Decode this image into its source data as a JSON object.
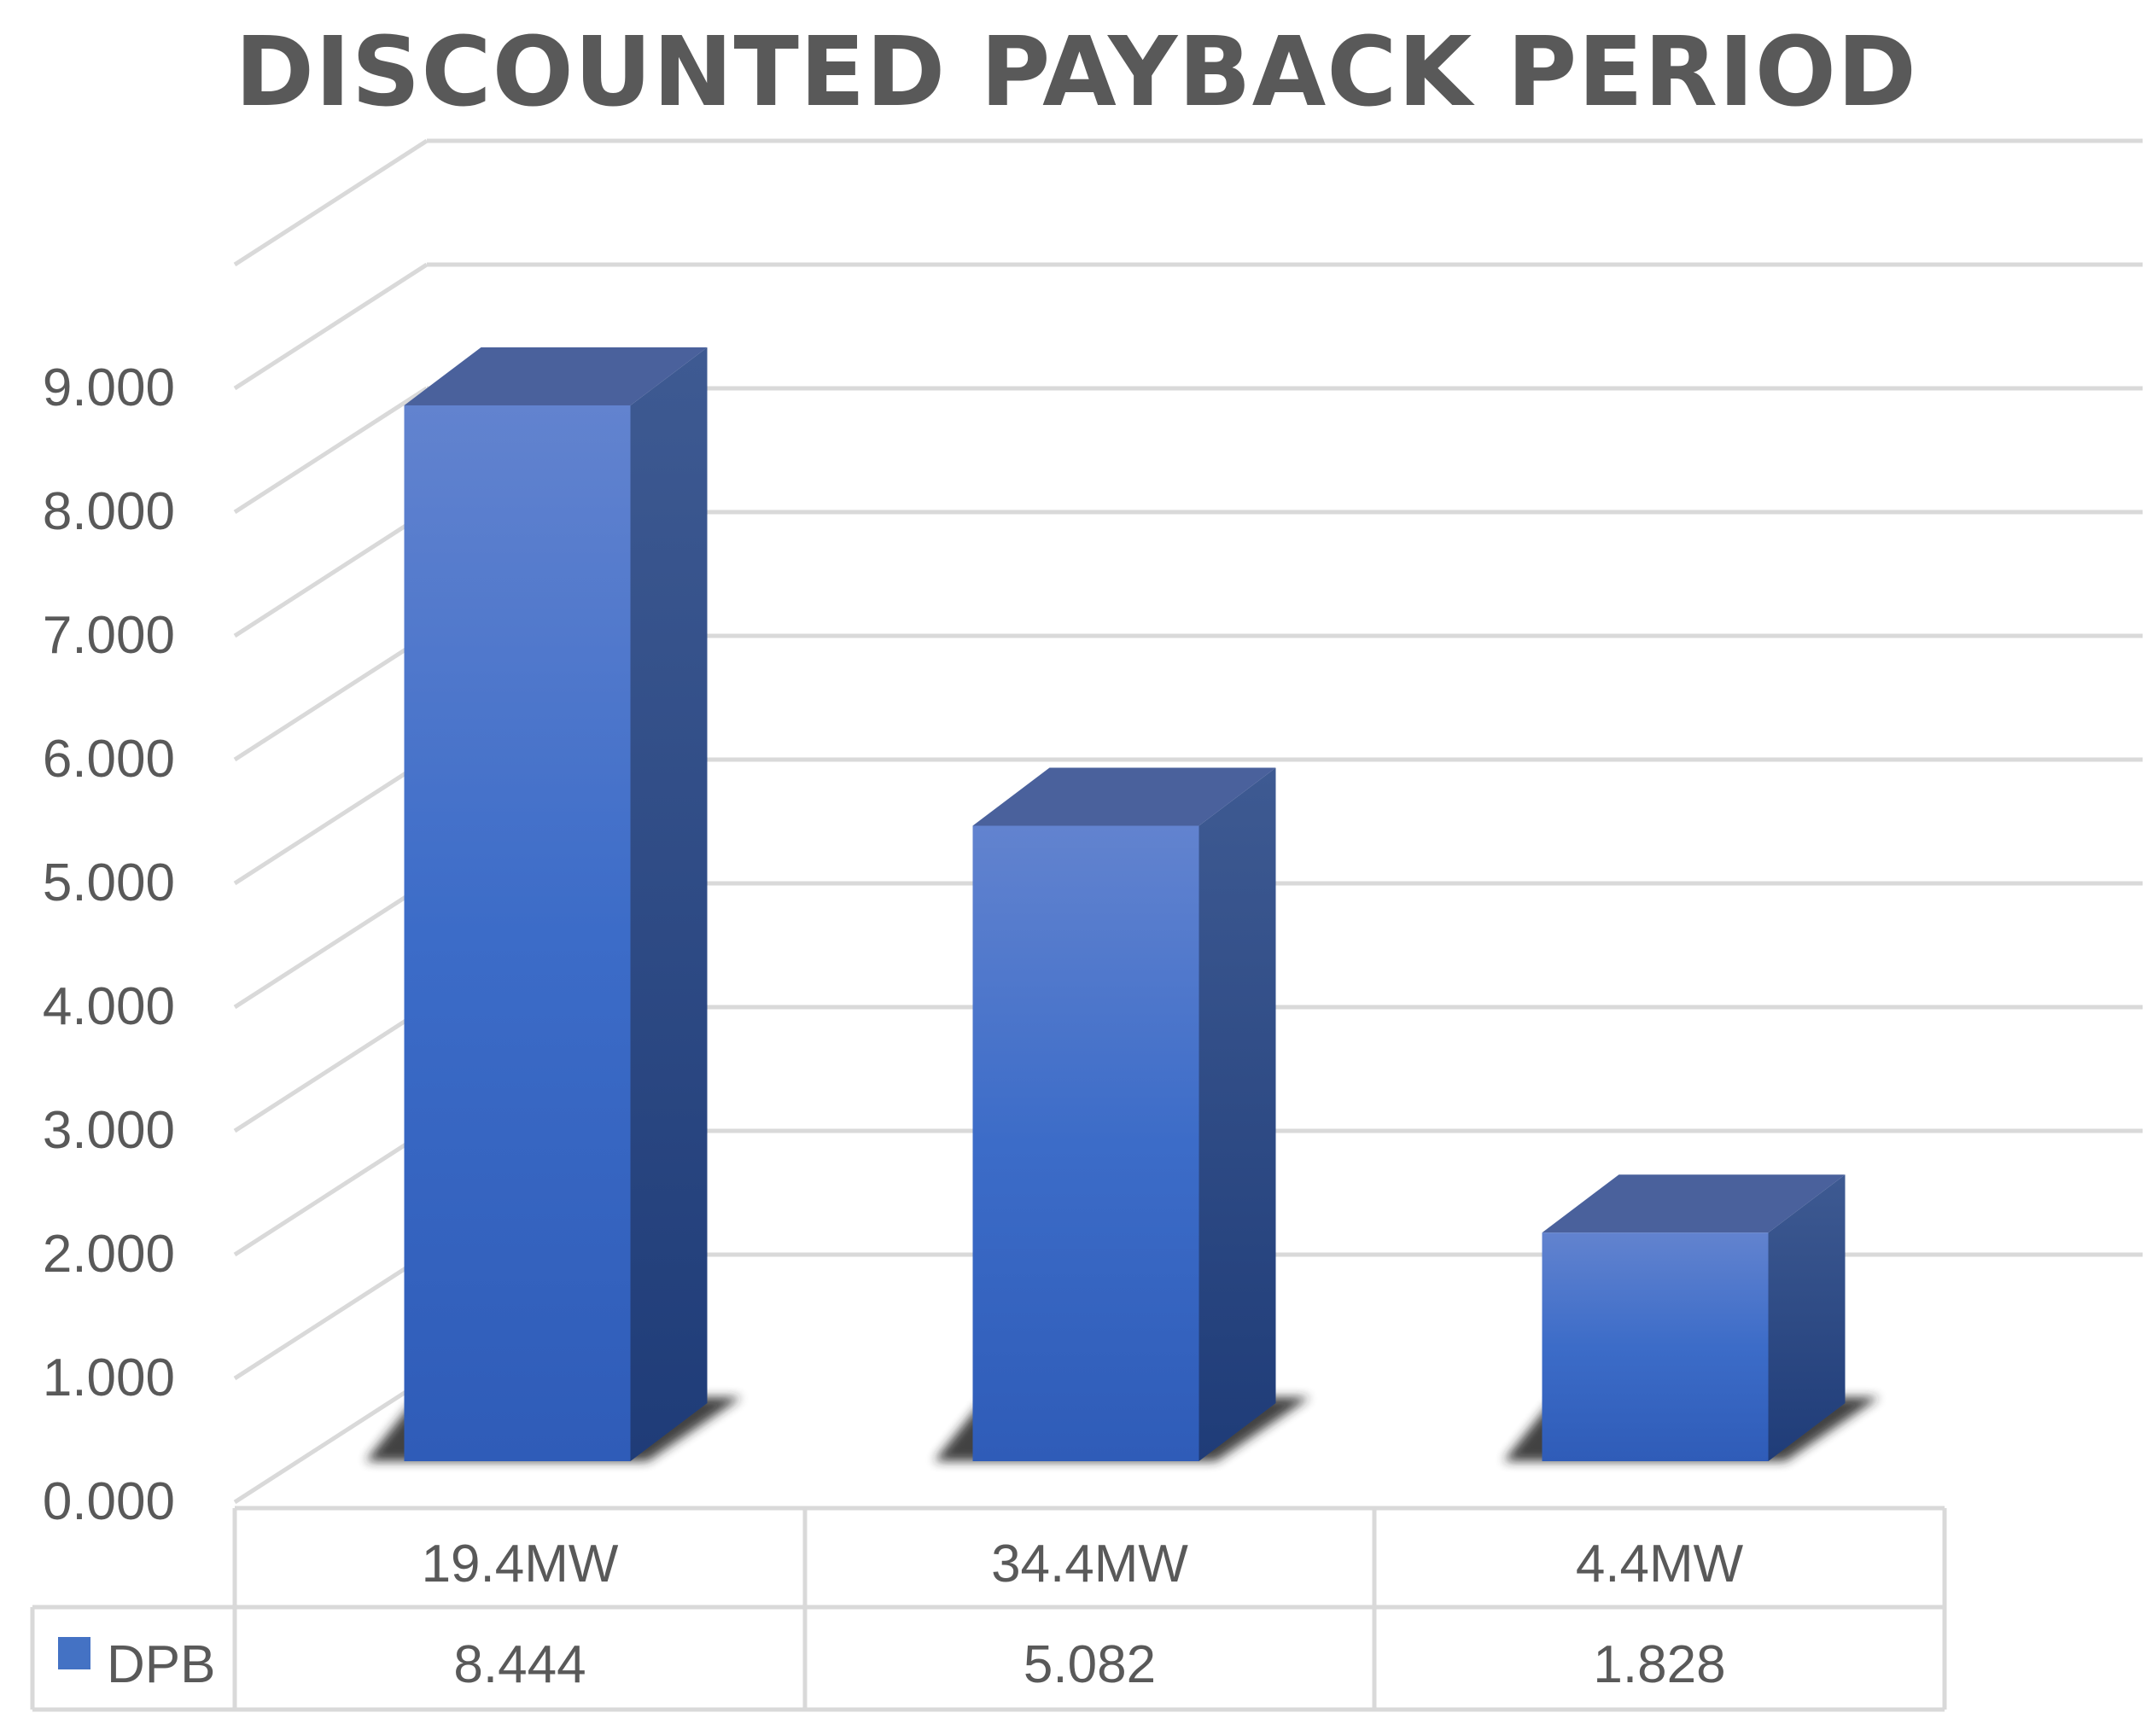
{
  "chart_data": {
    "type": "bar",
    "title": "DISCOUNTED PAYBACK PERIOD",
    "categories": [
      "19.4MW",
      "34.4MW",
      "4.4MW"
    ],
    "series": [
      {
        "name": "DPB",
        "values": [
          8.444,
          5.082,
          1.828
        ],
        "value_labels": [
          "8.444",
          "5.082",
          "1.828"
        ],
        "color": "#4472C4"
      }
    ],
    "ylim": [
      0,
      10
    ],
    "yticks": [
      "0.000",
      "1.000",
      "2.000",
      "3.000",
      "4.000",
      "5.000",
      "6.000",
      "7.000",
      "8.000",
      "9.000"
    ],
    "grid": true,
    "style": "3d-column",
    "legend": "data-table-below"
  },
  "colors": {
    "bar_front": "#4472C4",
    "bar_side": "#2C4C8C",
    "bar_top": "#4A619C",
    "grid": "#D9D9D9",
    "text": "#595959"
  }
}
